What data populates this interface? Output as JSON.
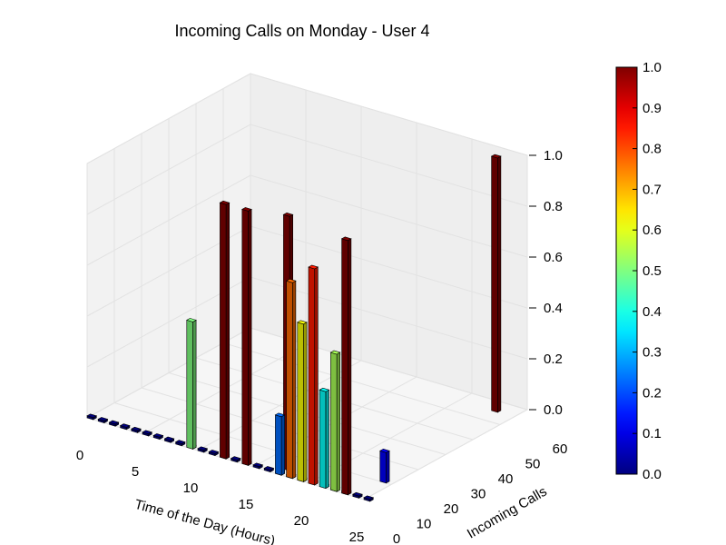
{
  "chart_data": {
    "type": "bar3d",
    "title": "Incoming Calls on Monday - User 4",
    "xlabel": "Time of the Day (Hours)",
    "ylabel": "Incoming Calls",
    "xlim": [
      0,
      25
    ],
    "ylim": [
      0,
      60
    ],
    "zlim": [
      0,
      1.0
    ],
    "xticks": [
      "0",
      "5",
      "10",
      "15",
      "20",
      "25"
    ],
    "yticks": [
      "0",
      "10",
      "20",
      "30",
      "40",
      "50",
      "60"
    ],
    "zticks": [
      "0.0",
      "0.2",
      "0.4",
      "0.6",
      "0.8",
      "1.0"
    ],
    "colorbar": {
      "ticks": [
        "0.0",
        "0.1",
        "0.2",
        "0.3",
        "0.4",
        "0.5",
        "0.6",
        "0.7",
        "0.8",
        "0.9",
        "1.0"
      ],
      "cmap": "jet"
    },
    "bars": [
      {
        "x": 9,
        "y": 0,
        "height": 0.5
      },
      {
        "x": 12,
        "y": 0,
        "height": 1.0
      },
      {
        "x": 14,
        "y": 0,
        "height": 1.0
      },
      {
        "x": 17,
        "y": 0,
        "height": 0.23
      },
      {
        "x": 17,
        "y": 3,
        "height": 1.0
      },
      {
        "x": 18,
        "y": 0,
        "height": 0.77
      },
      {
        "x": 19,
        "y": 0,
        "height": 0.62
      },
      {
        "x": 20,
        "y": 0,
        "height": 0.85
      },
      {
        "x": 21,
        "y": 0,
        "height": 0.38
      },
      {
        "x": 22,
        "y": 0,
        "height": 0.54
      },
      {
        "x": 23,
        "y": 0,
        "height": 1.0
      },
      {
        "x": 23,
        "y": 55,
        "height": 1.0
      },
      {
        "x": 24,
        "y": 10,
        "height": 0.12
      }
    ]
  }
}
